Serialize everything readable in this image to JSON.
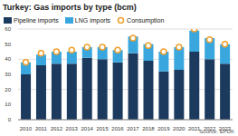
{
  "chart_data": {
    "type": "bar",
    "title": "Turkey: Gas imports by type (bcm)",
    "categories": [
      "2010",
      "2011",
      "2012",
      "2013",
      "2014",
      "2015",
      "2016",
      "2017",
      "2018",
      "2019",
      "2020",
      "2021",
      "2022",
      "2023"
    ],
    "series": [
      {
        "name": "Pipeline imports",
        "type": "bar",
        "color": "#1c3a5e",
        "values": [
          30,
          36,
          37,
          37,
          41,
          40,
          38,
          44,
          39,
          32,
          33,
          45,
          40,
          37
        ]
      },
      {
        "name": "LNG imports",
        "type": "bar",
        "color": "#39a7de",
        "values": [
          8,
          7,
          8,
          8,
          7,
          8,
          8,
          11,
          11,
          13,
          15,
          14,
          14,
          13
        ]
      },
      {
        "name": "Consumption",
        "type": "scatter",
        "marker": "circle",
        "color": "#f0a02c",
        "values": [
          38,
          44,
          45,
          46,
          48,
          48,
          46,
          54,
          49,
          45,
          48,
          60,
          53,
          50
        ]
      }
    ],
    "ylim": [
      0,
      60
    ],
    "yticks": [
      0,
      10,
      20,
      30,
      40,
      50,
      60
    ],
    "grid": true,
    "stacked": true,
    "legend": "top left",
    "annotation": "Source: EPDK"
  }
}
